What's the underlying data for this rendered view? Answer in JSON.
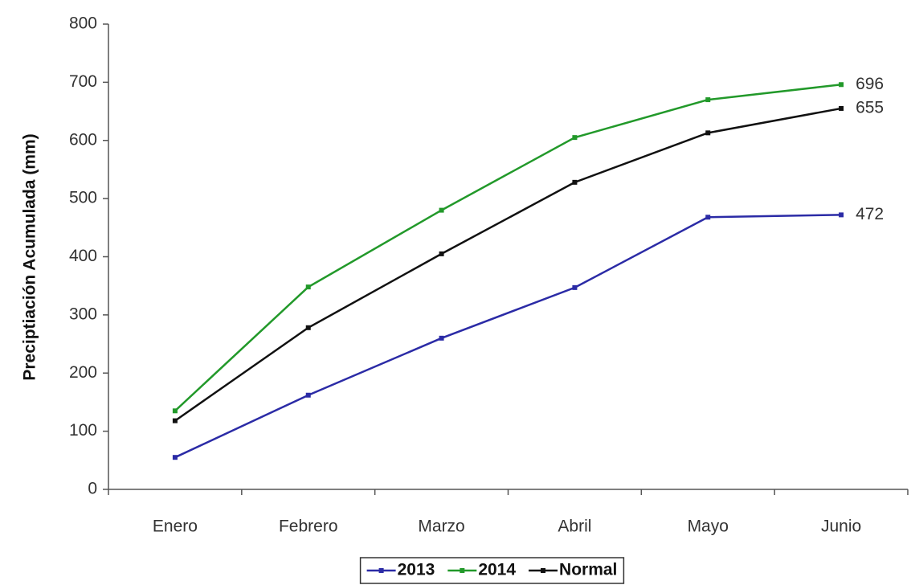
{
  "chart_data": {
    "type": "line",
    "y_label": "Preciptiación Acumulada (mm)",
    "categories": [
      "Enero",
      "Febrero",
      "Marzo",
      "Abril",
      "Mayo",
      "Junio"
    ],
    "series": [
      {
        "name": "2013",
        "color": "#2b2ba6",
        "values": [
          55,
          162,
          260,
          347,
          468,
          472
        ]
      },
      {
        "name": "2014",
        "color": "#22992a",
        "values": [
          135,
          348,
          480,
          605,
          670,
          696
        ]
      },
      {
        "name": "Normal",
        "color": "#111111",
        "values": [
          118,
          278,
          405,
          528,
          613,
          655
        ]
      }
    ],
    "ylim": [
      0,
      800
    ],
    "yticks": [
      0,
      100,
      200,
      300,
      400,
      500,
      600,
      700,
      800
    ],
    "legend": "bottom"
  }
}
